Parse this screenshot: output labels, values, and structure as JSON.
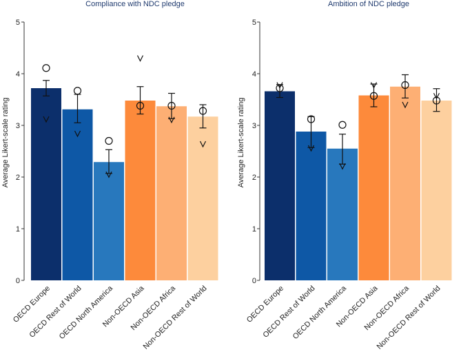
{
  "chart_data": [
    {
      "type": "bar",
      "title": "Compliance with NDC pledge",
      "ylabel": "Average Likert-scale rating",
      "xlabel": "",
      "ylim": [
        0,
        5
      ],
      "yticks": [
        0,
        1,
        2,
        3,
        4,
        5
      ],
      "categories": [
        "OECD Europe",
        "OECD Rest of World",
        "OECD North America",
        "Non-OECD Asia",
        "Non-OECD Africa",
        "Non-OECD Rest of World"
      ],
      "values": [
        3.72,
        3.31,
        2.29,
        3.48,
        3.37,
        3.17
      ],
      "error_low": [
        3.57,
        3.05,
        2.07,
        3.22,
        3.13,
        2.95
      ],
      "error_high": [
        3.87,
        3.6,
        2.53,
        3.75,
        3.62,
        3.4
      ],
      "circle_markers": [
        4.11,
        3.67,
        2.7,
        3.38,
        3.38,
        3.28
      ],
      "vee_markers": [
        3.12,
        2.84,
        2.05,
        4.3,
        3.11,
        2.64
      ],
      "colors": [
        "#0c2f6b",
        "#0e58a6",
        "#2878bd",
        "#fd8a3b",
        "#fdaf74",
        "#fdd09f"
      ]
    },
    {
      "type": "bar",
      "title": "Ambition of NDC pledge",
      "ylabel": "Average Likert-scale rating",
      "xlabel": "",
      "ylim": [
        0,
        5
      ],
      "yticks": [
        0,
        1,
        2,
        3,
        4,
        5
      ],
      "categories": [
        "OECD Europe",
        "OECD Rest of World",
        "OECD North America",
        "Non-OECD Asia",
        "Non-OECD Africa",
        "Non-OECD Rest of World"
      ],
      "values": [
        3.66,
        2.88,
        2.55,
        3.58,
        3.75,
        3.48
      ],
      "error_low": [
        3.54,
        2.57,
        2.25,
        3.36,
        3.53,
        3.27
      ],
      "error_high": [
        3.79,
        3.17,
        2.83,
        3.8,
        3.98,
        3.71
      ],
      "circle_markers": [
        3.72,
        3.12,
        3.01,
        3.57,
        3.78,
        3.48
      ],
      "vee_markers": [
        3.78,
        2.56,
        2.21,
        3.78,
        3.4,
        3.57
      ],
      "colors": [
        "#0c2f6b",
        "#0e58a6",
        "#2878bd",
        "#fd8a3b",
        "#fdaf74",
        "#fdd09f"
      ]
    }
  ]
}
